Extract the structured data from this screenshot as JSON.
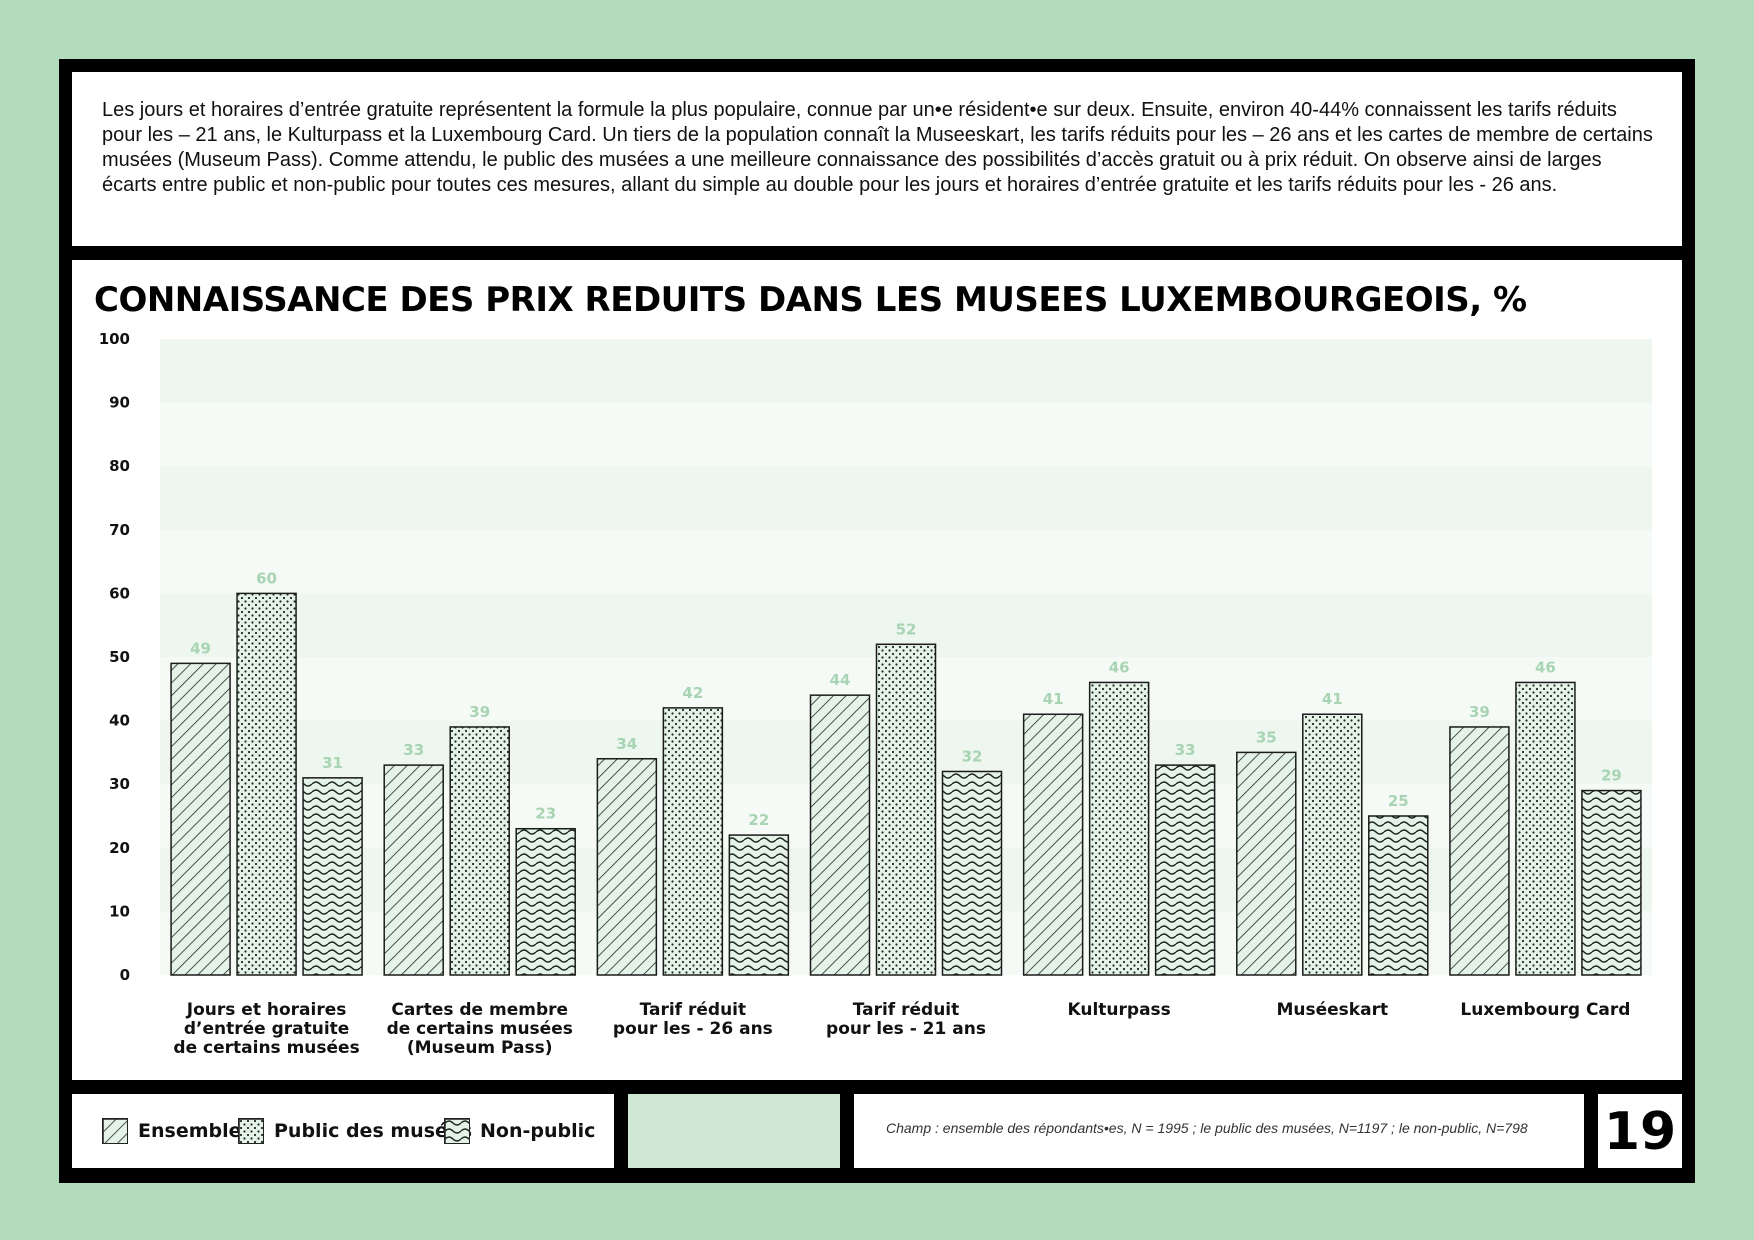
{
  "intro": "Les jours et horaires d’entrée gratuite représentent la formule la plus populaire, connue par un•e résident•e sur deux. Ensuite, environ 40-44% connaissent les tarifs réduits pour les – 21 ans, le Kulturpass et la Luxembourg Card. Un tiers de la population connaît la Museeskart, les tarifs réduits pour les – 26 ans et les cartes de membre de certains musées (Museum Pass). Comme attendu, le public des musées a une meilleure connaissance des possibilités d’accès gratuit ou à prix réduit. On observe ainsi de larges écarts entre public et non-public pour toutes ces mesures, allant du simple au double pour les jours et horaires d’entrée gratuite et les tarifs réduits pour les - 26 ans.",
  "note": "Champ : ensemble des répondants•es, N = 1995 ; le public des musées, N=1197 ; le non-public, N=798",
  "page_number": "19",
  "legend": {
    "ensemble": "Ensemble",
    "public": "Public des musées",
    "nonpublic": "Non-public"
  },
  "colors": {
    "background": "#b3dcbd",
    "value_label": "#a8d4b3",
    "bar_fill": "#e4f2e7",
    "band": "#edf6ef"
  },
  "chart_data": {
    "type": "bar",
    "title": "CONNAISSANCE DES PRIX REDUITS DANS LES MUSEES LUXEMBOURGEOIS, %",
    "categories": [
      [
        "Jours et horaires",
        "d’entrée gratuite",
        "de certains musées"
      ],
      [
        "Cartes de membre",
        "de certains musées",
        "(Museum Pass)"
      ],
      [
        "Tarif réduit",
        "pour les - 26 ans"
      ],
      [
        "Tarif réduit",
        "pour les - 21 ans"
      ],
      [
        "Kulturpass"
      ],
      [
        "Muséeskart"
      ],
      [
        "Luxembourg Card"
      ]
    ],
    "series": [
      {
        "name": "Ensemble",
        "pattern": "hatch",
        "values": [
          49,
          33,
          34,
          44,
          41,
          35,
          39
        ]
      },
      {
        "name": "Public des musées",
        "pattern": "dots",
        "values": [
          60,
          39,
          42,
          52,
          46,
          41,
          46
        ]
      },
      {
        "name": "Non-public",
        "pattern": "waves",
        "values": [
          31,
          23,
          22,
          32,
          33,
          25,
          29
        ]
      }
    ],
    "ylim": [
      0,
      100
    ],
    "yticks": [
      0,
      10,
      20,
      30,
      40,
      50,
      60,
      70,
      80,
      90,
      100
    ],
    "grid": "alternating bands",
    "legend_position": "bottom-left",
    "data_labels": true
  }
}
